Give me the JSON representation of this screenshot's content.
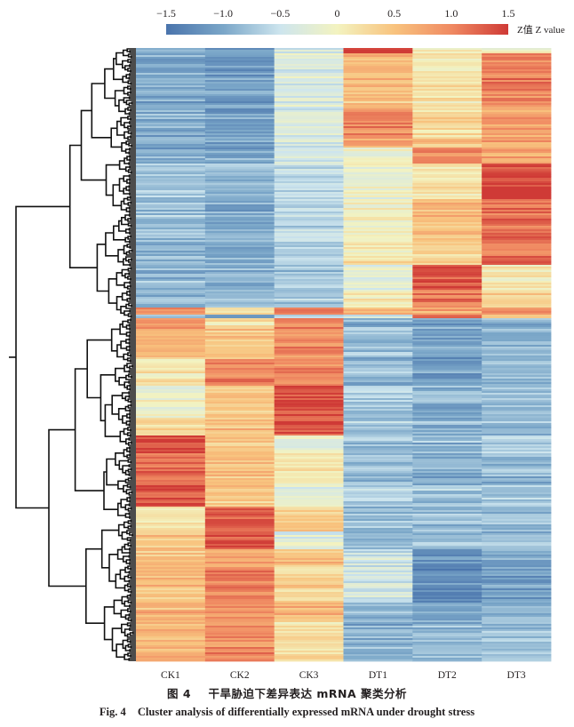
{
  "chart_data": {
    "type": "heatmap",
    "title": "",
    "columns": [
      "CK1",
      "CK2",
      "CK3",
      "DT1",
      "DT2",
      "DT3"
    ],
    "row_count": 345,
    "row_clustering": "hierarchical dendrogram (left)",
    "colorbar": {
      "label": "Z值 Z value",
      "range": [
        -1.5,
        1.5
      ],
      "ticks": [
        -1.5,
        -1.0,
        -0.5,
        0,
        0.5,
        1.0,
        1.5
      ],
      "tick_labels": [
        "−1.5",
        "−1.0",
        "−0.5",
        "0",
        "0.5",
        "1.0",
        "1.5"
      ],
      "colors": [
        "#4a74ac",
        "#7aa6c8",
        "#cde5ee",
        "#f3f3c0",
        "#f8c37e",
        "#f08a62",
        "#cf3a36"
      ],
      "placement": "top"
    },
    "row_blocks": [
      {
        "rows": [
          0,
          3
        ],
        "z": [
          -1.0,
          -1.05,
          -0.35,
          1.45,
          0.0,
          0.0
        ]
      },
      {
        "rows": [
          3,
          24
        ],
        "z": [
          -1.0,
          -1.1,
          -0.3,
          0.55,
          0.15,
          1.05
        ]
      },
      {
        "rows": [
          24,
          34
        ],
        "z": [
          -1.0,
          -1.05,
          -0.3,
          0.5,
          0.2,
          0.95
        ]
      },
      {
        "rows": [
          34,
          50
        ],
        "z": [
          -0.95,
          -1.1,
          -0.35,
          1.0,
          0.25,
          0.75
        ]
      },
      {
        "rows": [
          50,
          56
        ],
        "z": [
          -0.9,
          -1.05,
          -0.35,
          0.75,
          0.45,
          0.8
        ]
      },
      {
        "rows": [
          56,
          65
        ],
        "z": [
          -0.95,
          -1.0,
          -0.4,
          -0.1,
          1.0,
          0.75
        ]
      },
      {
        "rows": [
          65,
          72
        ],
        "z": [
          -0.8,
          -0.85,
          -0.55,
          -0.2,
          0.1,
          1.4
        ]
      },
      {
        "rows": [
          72,
          85
        ],
        "z": [
          -0.75,
          -0.85,
          -0.6,
          -0.15,
          0.1,
          1.45
        ]
      },
      {
        "rows": [
          85,
          105
        ],
        "z": [
          -0.8,
          -0.95,
          -0.6,
          0.0,
          0.55,
          1.15
        ]
      },
      {
        "rows": [
          105,
          122
        ],
        "z": [
          -0.85,
          -0.95,
          -0.65,
          0.15,
          0.35,
          1.2
        ]
      },
      {
        "rows": [
          122,
          136
        ],
        "z": [
          -0.8,
          -0.85,
          -0.7,
          -0.2,
          1.4,
          0.15
        ]
      },
      {
        "rows": [
          136,
          146
        ],
        "z": [
          -0.85,
          -0.9,
          -0.75,
          0.05,
          1.15,
          0.3
        ]
      },
      {
        "rows": [
          146,
          150
        ],
        "z": [
          0.9,
          0.2,
          1.0,
          0.7,
          0.7,
          1.0
        ]
      },
      {
        "rows": [
          150,
          152
        ],
        "z": [
          -0.9,
          -1.0,
          -0.8,
          -0.5,
          1.1,
          0.4
        ]
      },
      {
        "rows": [
          152,
          158
        ],
        "z": [
          0.8,
          0.2,
          0.95,
          -0.9,
          -1.0,
          -0.9
        ]
      },
      {
        "rows": [
          158,
          175
        ],
        "z": [
          0.6,
          0.45,
          0.95,
          -0.8,
          -1.1,
          -0.95
        ]
      },
      {
        "rows": [
          175,
          190
        ],
        "z": [
          0.1,
          1.0,
          0.95,
          -0.85,
          -1.05,
          -0.85
        ]
      },
      {
        "rows": [
          190,
          208
        ],
        "z": [
          -0.1,
          0.45,
          1.4,
          -0.65,
          -0.9,
          -0.75
        ]
      },
      {
        "rows": [
          208,
          218
        ],
        "z": [
          0.2,
          0.5,
          1.35,
          -0.75,
          -0.9,
          -0.8
        ]
      },
      {
        "rows": [
          218,
          228
        ],
        "z": [
          1.35,
          0.45,
          -0.3,
          -0.8,
          -0.85,
          -0.75
        ]
      },
      {
        "rows": [
          228,
          246
        ],
        "z": [
          1.15,
          0.5,
          0.05,
          -0.85,
          -1.0,
          -0.9
        ]
      },
      {
        "rows": [
          246,
          258
        ],
        "z": [
          1.3,
          0.4,
          -0.25,
          -0.7,
          -0.75,
          -0.75
        ]
      },
      {
        "rows": [
          258,
          272
        ],
        "z": [
          0.1,
          1.3,
          0.35,
          -0.85,
          -0.85,
          -0.8
        ]
      },
      {
        "rows": [
          272,
          282
        ],
        "z": [
          0.45,
          1.35,
          -0.3,
          -0.9,
          -0.85,
          -0.8
        ]
      },
      {
        "rows": [
          282,
          292
        ],
        "z": [
          0.55,
          0.75,
          0.55,
          -0.45,
          -1.2,
          -1.0
        ]
      },
      {
        "rows": [
          292,
          312
        ],
        "z": [
          0.5,
          1.05,
          0.3,
          -0.4,
          -1.2,
          -1.05
        ]
      },
      {
        "rows": [
          312,
          322
        ],
        "z": [
          0.6,
          0.95,
          0.65,
          -0.9,
          -1.0,
          -0.85
        ]
      },
      {
        "rows": [
          322,
          345
        ],
        "z": [
          0.55,
          0.95,
          0.15,
          -0.95,
          -0.9,
          -0.8
        ]
      }
    ],
    "dendrogram": {
      "top_level_clusters": [
        {
          "rows": [
            0,
            152
          ],
          "pattern": "up in DT (drought)"
        },
        {
          "rows": [
            152,
            345
          ],
          "pattern": "up in CK (control)"
        }
      ]
    }
  },
  "caption": {
    "cn_label": "图 4",
    "cn_text": "干旱胁迫下差异表达 mRNA 聚类分析",
    "en_label": "Fig. 4",
    "en_text": "Cluster analysis of differentially expressed mRNA under drought stress"
  }
}
